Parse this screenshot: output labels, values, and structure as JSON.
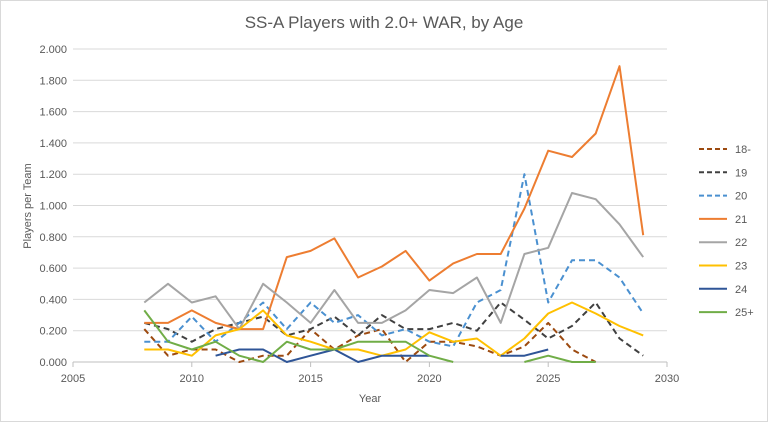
{
  "chart_data": {
    "type": "line",
    "title": "SS-A Players with 2.0+ WAR, by Age",
    "xlabel": "Year",
    "ylabel": "Players per Team",
    "xlim": [
      2005,
      2030
    ],
    "ylim": [
      0,
      2.0
    ],
    "x_ticks": [
      "2005",
      "2010",
      "2015",
      "2020",
      "2025",
      "2030"
    ],
    "y_ticks": [
      "0.000",
      "0.200",
      "0.400",
      "0.600",
      "0.800",
      "1.000",
      "1.200",
      "1.400",
      "1.600",
      "1.800",
      "2.000"
    ],
    "grid": "horizontal",
    "legend_position": "right",
    "x": [
      2008,
      2009,
      2010,
      2011,
      2012,
      2013,
      2014,
      2015,
      2016,
      2017,
      2018,
      2019,
      2020,
      2021,
      2022,
      2023,
      2024,
      2025,
      2026,
      2027,
      2028,
      2029
    ],
    "series": [
      {
        "name": "18-",
        "color": "#9c4a10",
        "dash": "dash",
        "values": [
          0.21,
          0.04,
          0.08,
          0.08,
          0.0,
          0.04,
          0.04,
          0.21,
          0.08,
          0.17,
          0.21,
          0.0,
          0.13,
          0.13,
          0.1,
          0.04,
          0.1,
          0.25,
          0.08,
          0.0,
          null,
          null
        ]
      },
      {
        "name": "19",
        "color": "#404040",
        "dash": "dash",
        "values": [
          0.25,
          0.21,
          0.13,
          0.21,
          0.25,
          0.29,
          0.17,
          0.21,
          0.29,
          0.17,
          0.3,
          0.21,
          0.21,
          0.25,
          0.2,
          0.38,
          0.27,
          0.15,
          0.23,
          0.38,
          0.15,
          0.04
        ]
      },
      {
        "name": "20",
        "color": "#4a90d0",
        "dash": "dash",
        "values": [
          0.13,
          0.13,
          0.29,
          0.13,
          0.25,
          0.38,
          0.21,
          0.38,
          0.25,
          0.3,
          0.17,
          0.21,
          0.13,
          0.1,
          0.38,
          0.46,
          1.2,
          0.38,
          0.65,
          0.65,
          0.54,
          0.31
        ]
      },
      {
        "name": "21",
        "color": "#ed7d31",
        "dash": "solid",
        "values": [
          0.25,
          0.25,
          0.33,
          0.25,
          0.21,
          0.21,
          0.67,
          0.71,
          0.79,
          0.54,
          0.61,
          0.71,
          0.52,
          0.63,
          0.69,
          0.69,
          0.98,
          1.35,
          1.31,
          1.46,
          1.89,
          0.81
        ]
      },
      {
        "name": "22",
        "color": "#a5a5a5",
        "dash": "solid",
        "values": [
          0.38,
          0.5,
          0.38,
          0.42,
          0.21,
          0.5,
          0.38,
          0.25,
          0.46,
          0.25,
          0.25,
          0.33,
          0.46,
          0.44,
          0.54,
          0.25,
          0.69,
          0.73,
          1.08,
          1.04,
          0.88,
          0.67
        ]
      },
      {
        "name": "23",
        "color": "#ffc000",
        "dash": "solid",
        "values": [
          0.08,
          0.08,
          0.04,
          0.17,
          0.21,
          0.33,
          0.17,
          0.13,
          0.08,
          0.08,
          0.04,
          0.08,
          0.19,
          0.13,
          0.15,
          0.04,
          0.15,
          0.31,
          0.38,
          0.31,
          0.23,
          0.17
        ]
      },
      {
        "name": "24",
        "color": "#2f5597",
        "dash": "solid",
        "values": [
          null,
          null,
          null,
          0.04,
          0.08,
          0.08,
          0.0,
          0.04,
          0.08,
          0.0,
          0.04,
          0.04,
          0.04,
          null,
          null,
          0.04,
          0.04,
          0.08,
          null,
          null,
          null,
          null
        ]
      },
      {
        "name": "25+",
        "color": "#70ad47",
        "dash": "solid",
        "values": [
          0.33,
          0.13,
          0.08,
          0.13,
          0.04,
          0.0,
          0.13,
          0.08,
          0.08,
          0.13,
          0.13,
          0.13,
          0.04,
          0.0,
          null,
          null,
          0.0,
          0.04,
          0.0,
          0.0,
          null,
          null
        ]
      }
    ]
  }
}
